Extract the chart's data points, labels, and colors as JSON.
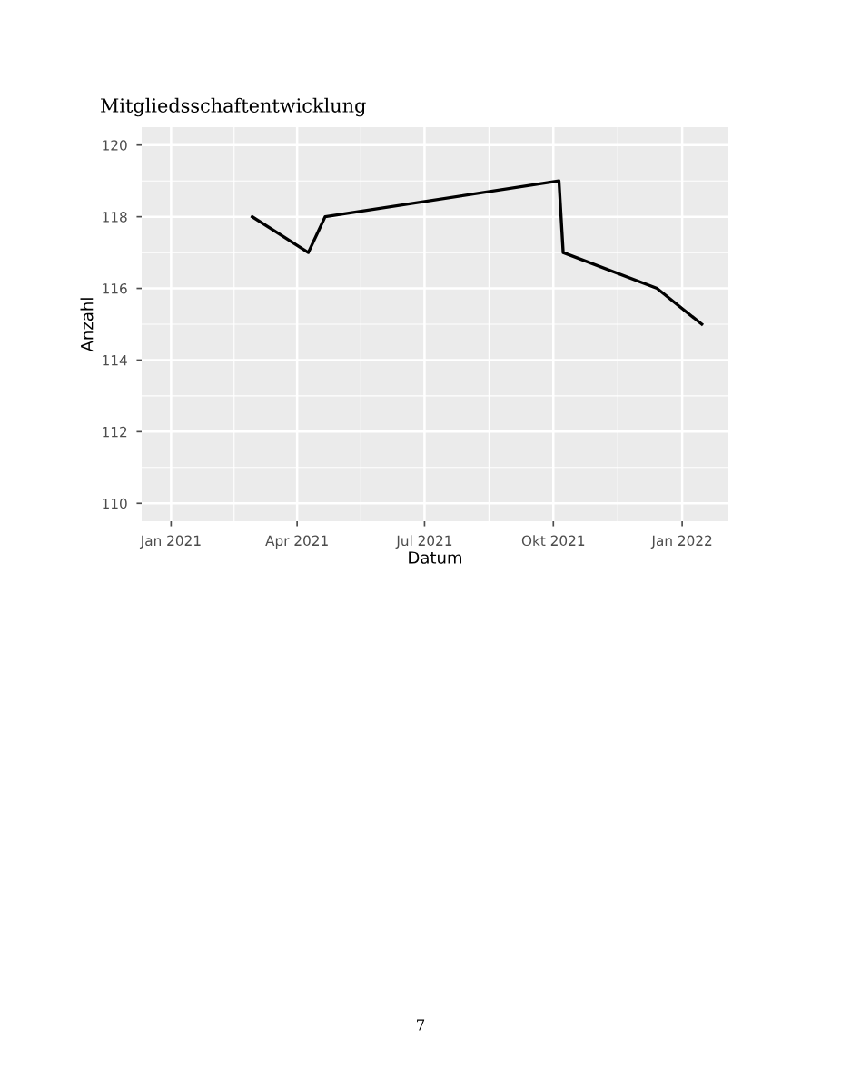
{
  "chart_data": {
    "type": "line",
    "title": "Mitgliedsschaftentwicklung",
    "xlabel": "Datum",
    "ylabel": "Anzahl",
    "x": [
      "2021-02-28",
      "2021-04-09",
      "2021-04-21",
      "2021-10-05",
      "2021-10-08",
      "2021-12-14",
      "2022-01-15"
    ],
    "series": [
      {
        "color": "#000000",
        "values": [
          118,
          117,
          118,
          119,
          117,
          116,
          115
        ]
      }
    ],
    "xlim": [
      "2020-12-11",
      "2022-02-03"
    ],
    "xticks": [
      {
        "value": "2021-01-01",
        "label": "Jan 2021"
      },
      {
        "value": "2021-04-01",
        "label": "Apr 2021"
      },
      {
        "value": "2021-07-01",
        "label": "Jul 2021"
      },
      {
        "value": "2021-10-01",
        "label": "Okt 2021"
      },
      {
        "value": "2022-01-01",
        "label": "Jan 2022"
      }
    ],
    "ylim": [
      109.5,
      120.5
    ],
    "yticks": [
      110,
      112,
      114,
      116,
      118,
      120
    ],
    "grid": true,
    "legend": false,
    "marker": "none",
    "line_style": "solid",
    "annotations": [
      "7"
    ]
  }
}
